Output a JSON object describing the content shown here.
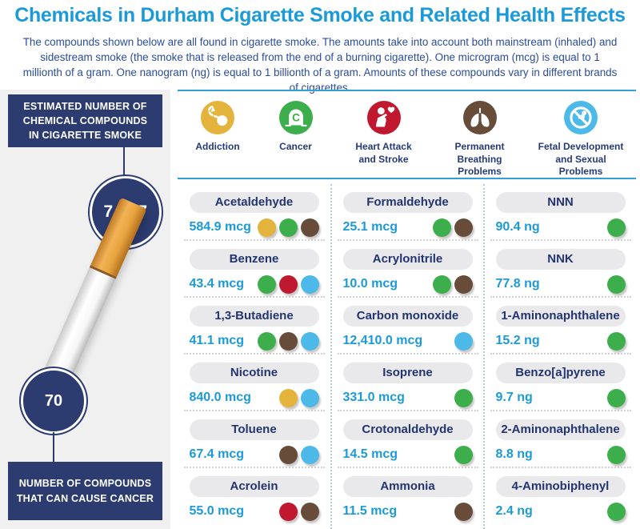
{
  "header": {
    "title": "Chemicals in Durham Cigarette Smoke and Related Health Effects",
    "intro": "The compounds shown below are all found in cigarette smoke. The amounts take into account both mainstream (inhaled) and sidestream smoke (the smoke that is released from the end of a burning cigarette). One microgram (mcg) is equal to 1 millionth of a gram. One nanogram (ng) is equal to 1 billionth of a gram. Amounts of these compounds vary in different brands of cigarettes."
  },
  "sidebar": {
    "top_box_label": "ESTIMATED NUMBER OF\nCHEMICAL COMPOUNDS\nIN CIGARETTE SMOKE",
    "top_circle_value": "7,357",
    "bottom_circle_value": "70",
    "bottom_box_label": "NUMBER OF COMPOUNDS\nTHAT CAN CAUSE CANCER"
  },
  "legend": {
    "items": [
      {
        "id": "addiction",
        "label": "Addiction",
        "color": "#e3b33c"
      },
      {
        "id": "cancer",
        "label": "Cancer",
        "color": "#3cae4b"
      },
      {
        "id": "heart",
        "label": "Heart Attack\nand Stroke",
        "color": "#c0182f"
      },
      {
        "id": "breathing",
        "label": "Permanent\nBreathing\nProblems",
        "color": "#684c3a"
      },
      {
        "id": "fetal",
        "label": "Fetal Development\nand Sexual\nProblems",
        "color": "#4cb9e8"
      }
    ]
  },
  "effect_colors": {
    "addiction": "#e3b33c",
    "cancer": "#3cae4b",
    "heart": "#c0182f",
    "breathing": "#684c3a",
    "fetal": "#4cb9e8"
  },
  "compounds": {
    "columns": [
      [
        {
          "name": "Acetaldehyde",
          "amount": "584.9 mcg",
          "effects": [
            "addiction",
            "cancer",
            "breathing"
          ]
        },
        {
          "name": "Benzene",
          "amount": "43.4 mcg",
          "effects": [
            "cancer",
            "heart",
            "fetal"
          ]
        },
        {
          "name": "1,3-Butadiene",
          "amount": "41.1 mcg",
          "effects": [
            "cancer",
            "breathing",
            "fetal"
          ]
        },
        {
          "name": "Nicotine",
          "amount": "840.0 mcg",
          "effects": [
            "addiction",
            "fetal"
          ]
        },
        {
          "name": "Toluene",
          "amount": "67.4 mcg",
          "effects": [
            "breathing",
            "fetal"
          ]
        },
        {
          "name": "Acrolein",
          "amount": "55.0 mcg",
          "effects": [
            "heart",
            "breathing"
          ]
        }
      ],
      [
        {
          "name": "Formaldehyde",
          "amount": "25.1 mcg",
          "effects": [
            "cancer",
            "breathing"
          ]
        },
        {
          "name": "Acrylonitrile",
          "amount": "10.0 mcg",
          "effects": [
            "cancer",
            "breathing"
          ]
        },
        {
          "name": "Carbon monoxide",
          "amount": "12,410.0 mcg",
          "effects": [
            "fetal"
          ]
        },
        {
          "name": "Isoprene",
          "amount": "331.0 mcg",
          "effects": [
            "cancer"
          ]
        },
        {
          "name": "Crotonaldehyde",
          "amount": "14.5 mcg",
          "effects": [
            "cancer"
          ]
        },
        {
          "name": "Ammonia",
          "amount": "11.5 mcg",
          "effects": [
            "breathing"
          ]
        }
      ],
      [
        {
          "name": "NNN",
          "amount": "90.4 ng",
          "effects": [
            "cancer"
          ]
        },
        {
          "name": "NNK",
          "amount": "77.8 ng",
          "effects": [
            "cancer"
          ]
        },
        {
          "name": "1-Aminonaphthalene",
          "amount": "15.2 ng",
          "effects": [
            "cancer"
          ]
        },
        {
          "name": "Benzo[a]pyrene",
          "amount": "9.7 ng",
          "effects": [
            "cancer"
          ]
        },
        {
          "name": "2-Aminonaphthalene",
          "amount": "8.8 ng",
          "effects": [
            "cancer"
          ]
        },
        {
          "name": "4-Aminobiphenyl",
          "amount": "2.4 ng",
          "effects": [
            "cancer"
          ]
        }
      ]
    ]
  }
}
